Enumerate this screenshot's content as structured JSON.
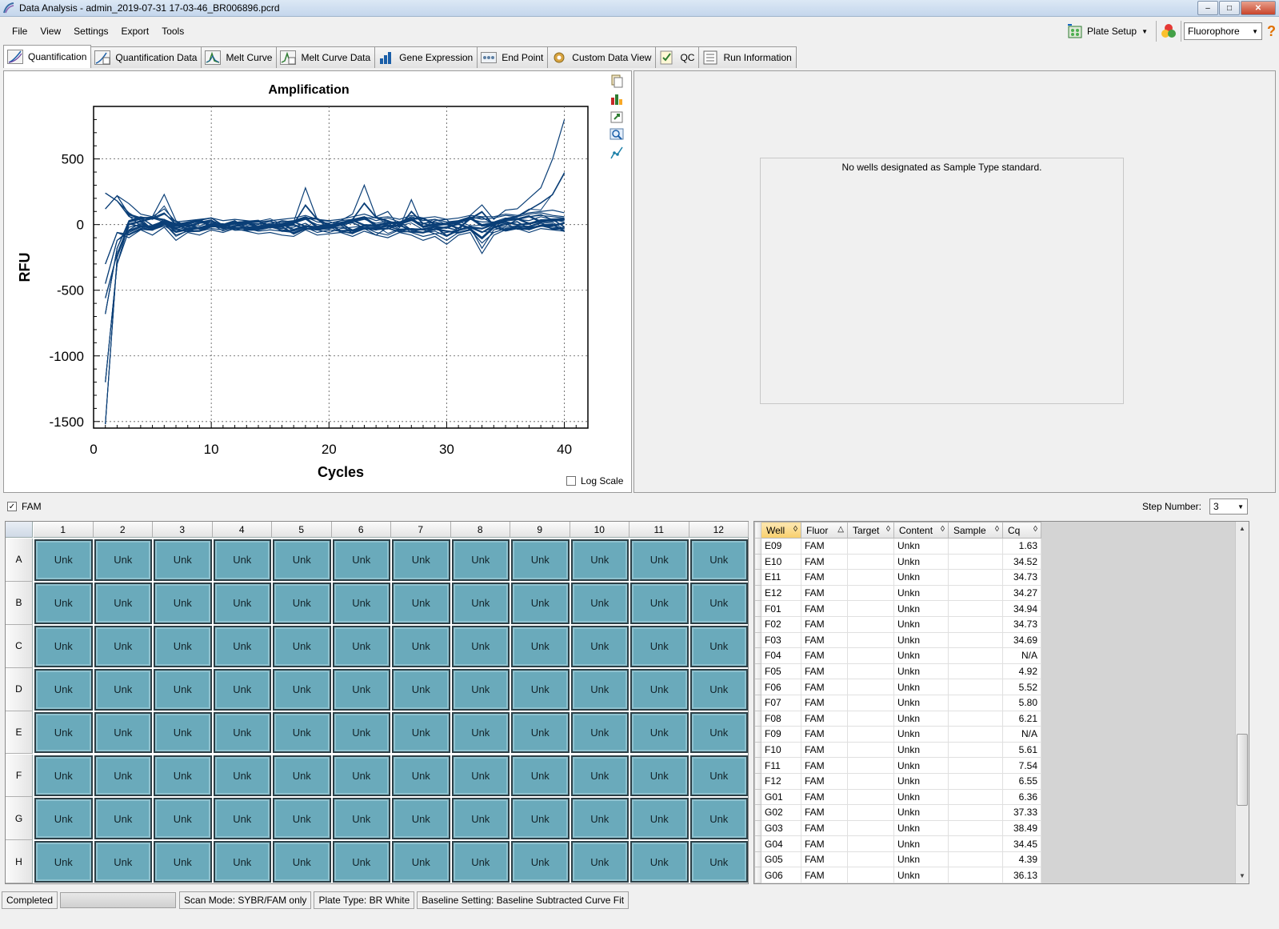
{
  "window": {
    "title": "Data Analysis - admin_2019-07-31 17-03-46_BR006896.pcrd",
    "minimize": "–",
    "maximize": "□",
    "close": "✕"
  },
  "menu": {
    "items": [
      "File",
      "View",
      "Settings",
      "Export",
      "Tools"
    ],
    "plate_setup_label": "Plate Setup",
    "fluorophore_selected": "Fluorophore",
    "help": "?"
  },
  "tabs": [
    {
      "label": "Quantification",
      "icon": "amplification-icon"
    },
    {
      "label": "Quantification Data",
      "icon": "quant-data-icon"
    },
    {
      "label": "Melt Curve",
      "icon": "melt-curve-icon"
    },
    {
      "label": "Melt Curve Data",
      "icon": "melt-data-icon"
    },
    {
      "label": "Gene Expression",
      "icon": "gene-expression-icon"
    },
    {
      "label": "End Point",
      "icon": "end-point-icon"
    },
    {
      "label": "Custom Data View",
      "icon": "gear-icon"
    },
    {
      "label": "QC",
      "icon": "qc-checklist-icon"
    },
    {
      "label": "Run Information",
      "icon": "run-info-icon"
    }
  ],
  "chart_data": {
    "type": "line",
    "title": "Amplification",
    "xlabel": "Cycles",
    "ylabel": "RFU",
    "xlim": [
      0,
      42
    ],
    "ylim": [
      -1550,
      900
    ],
    "xticks": [
      0,
      10,
      20,
      30,
      40
    ],
    "yticks": [
      -1500,
      -1000,
      -500,
      0,
      500
    ],
    "grid": true,
    "log_scale": false,
    "series_color": "#0b3f77",
    "x": [
      1,
      2,
      3,
      4,
      5,
      6,
      7,
      8,
      9,
      10,
      11,
      12,
      13,
      14,
      15,
      16,
      17,
      18,
      19,
      20,
      21,
      22,
      23,
      24,
      25,
      26,
      27,
      28,
      29,
      30,
      31,
      32,
      33,
      34,
      35,
      36,
      37,
      38,
      39,
      40
    ],
    "series": [
      {
        "values": [
          -1520,
          -250,
          20,
          40,
          60,
          230,
          30,
          -20,
          10,
          20,
          -10,
          0,
          20,
          -20,
          0,
          30,
          20,
          280,
          40,
          -10,
          30,
          80,
          300,
          60,
          100,
          -20,
          190,
          -20,
          30,
          40,
          -50,
          70,
          150,
          40,
          110,
          120,
          200,
          280,
          500,
          800
        ]
      },
      {
        "values": [
          -1200,
          -300,
          -40,
          10,
          -30,
          20,
          -40,
          -20,
          -30,
          10,
          -20,
          10,
          -10,
          -40,
          -20,
          -30,
          -20,
          10,
          -40,
          -30,
          -20,
          -50,
          -30,
          -80,
          -20,
          -10,
          -40,
          -60,
          -50,
          -90,
          -40,
          -10,
          -60,
          -20,
          -10,
          40,
          30,
          60,
          40,
          20
        ]
      },
      {
        "values": [
          -680,
          -180,
          30,
          60,
          40,
          80,
          20,
          -10,
          10,
          30,
          0,
          20,
          10,
          -10,
          10,
          20,
          30,
          60,
          20,
          10,
          30,
          40,
          60,
          30,
          50,
          20,
          60,
          30,
          40,
          20,
          30,
          60,
          40,
          50,
          70,
          60,
          80,
          90,
          70,
          60
        ]
      },
      {
        "values": [
          -450,
          -120,
          -60,
          -20,
          -40,
          -10,
          -60,
          -40,
          -50,
          -30,
          -40,
          -20,
          -30,
          -50,
          -40,
          -50,
          -60,
          -20,
          -60,
          -40,
          -50,
          -70,
          -20,
          -60,
          -80,
          -40,
          -60,
          -90,
          -70,
          -120,
          -60,
          -40,
          -140,
          -60,
          -30,
          -20,
          -40,
          -10,
          -20,
          -30
        ]
      },
      {
        "values": [
          240,
          180,
          90,
          30,
          -40,
          10,
          -80,
          -50,
          -20,
          -10,
          -30,
          -10,
          -20,
          -30,
          -20,
          -40,
          -50,
          -10,
          -40,
          -60,
          -30,
          -20,
          -10,
          -40,
          -30,
          -50,
          -30,
          -40,
          -70,
          -60,
          -40,
          -20,
          -180,
          -40,
          -20,
          -10,
          -20,
          -10,
          -30,
          -20
        ]
      },
      {
        "values": [
          120,
          220,
          160,
          80,
          60,
          120,
          20,
          30,
          40,
          50,
          30,
          40,
          30,
          20,
          30,
          40,
          50,
          70,
          40,
          30,
          40,
          60,
          80,
          50,
          60,
          40,
          70,
          50,
          60,
          40,
          50,
          70,
          60,
          60,
          80,
          70,
          90,
          100,
          110,
          90
        ]
      },
      {
        "values": [
          -300,
          -60,
          -100,
          -40,
          -80,
          -20,
          -120,
          -60,
          -80,
          -40,
          -60,
          -30,
          -50,
          -70,
          -60,
          -80,
          -90,
          -40,
          -80,
          -70,
          -60,
          -90,
          -50,
          -80,
          -100,
          -60,
          -80,
          -120,
          -90,
          -150,
          -80,
          -60,
          -220,
          -80,
          -40,
          -30,
          -60,
          -30,
          -40,
          -50
        ]
      },
      {
        "values": [
          -560,
          -220,
          -20,
          0,
          -20,
          40,
          -30,
          0,
          -10,
          20,
          -10,
          10,
          0,
          -20,
          -10,
          0,
          10,
          40,
          0,
          -10,
          10,
          20,
          40,
          10,
          30,
          0,
          30,
          10,
          20,
          0,
          10,
          40,
          20,
          20,
          50,
          40,
          60,
          70,
          60,
          50
        ]
      }
    ]
  },
  "chart": {
    "log_scale_label": "Log Scale",
    "tool_icons": [
      "copy-icon",
      "chart-settings-icon",
      "export-icon",
      "zoom-icon",
      "trace-icon"
    ]
  },
  "standard_curve": {
    "message": "No wells designated as Sample Type standard."
  },
  "fluor_filter": {
    "label": "FAM",
    "checked": true,
    "step_label": "Step Number:",
    "step_value": "3"
  },
  "plate": {
    "columns": [
      "1",
      "2",
      "3",
      "4",
      "5",
      "6",
      "7",
      "8",
      "9",
      "10",
      "11",
      "12"
    ],
    "rows": [
      "A",
      "B",
      "C",
      "D",
      "E",
      "F",
      "G",
      "H"
    ],
    "well_label": "Unk",
    "well_color": "#6aaabb"
  },
  "table": {
    "headers": [
      {
        "label": "Well",
        "sort": "◊"
      },
      {
        "label": "Fluor",
        "sort": "△"
      },
      {
        "label": "Target",
        "sort": "◊"
      },
      {
        "label": "Content",
        "sort": "◊"
      },
      {
        "label": "Sample",
        "sort": "◊"
      },
      {
        "label": "Cq",
        "sort": "◊"
      }
    ],
    "rows": [
      [
        "E09",
        "FAM",
        "",
        "Unkn",
        "",
        "1.63"
      ],
      [
        "E10",
        "FAM",
        "",
        "Unkn",
        "",
        "34.52"
      ],
      [
        "E11",
        "FAM",
        "",
        "Unkn",
        "",
        "34.73"
      ],
      [
        "E12",
        "FAM",
        "",
        "Unkn",
        "",
        "34.27"
      ],
      [
        "F01",
        "FAM",
        "",
        "Unkn",
        "",
        "34.94"
      ],
      [
        "F02",
        "FAM",
        "",
        "Unkn",
        "",
        "34.73"
      ],
      [
        "F03",
        "FAM",
        "",
        "Unkn",
        "",
        "34.69"
      ],
      [
        "F04",
        "FAM",
        "",
        "Unkn",
        "",
        "N/A"
      ],
      [
        "F05",
        "FAM",
        "",
        "Unkn",
        "",
        "4.92"
      ],
      [
        "F06",
        "FAM",
        "",
        "Unkn",
        "",
        "5.52"
      ],
      [
        "F07",
        "FAM",
        "",
        "Unkn",
        "",
        "5.80"
      ],
      [
        "F08",
        "FAM",
        "",
        "Unkn",
        "",
        "6.21"
      ],
      [
        "F09",
        "FAM",
        "",
        "Unkn",
        "",
        "N/A"
      ],
      [
        "F10",
        "FAM",
        "",
        "Unkn",
        "",
        "5.61"
      ],
      [
        "F11",
        "FAM",
        "",
        "Unkn",
        "",
        "7.54"
      ],
      [
        "F12",
        "FAM",
        "",
        "Unkn",
        "",
        "6.55"
      ],
      [
        "G01",
        "FAM",
        "",
        "Unkn",
        "",
        "6.36"
      ],
      [
        "G02",
        "FAM",
        "",
        "Unkn",
        "",
        "37.33"
      ],
      [
        "G03",
        "FAM",
        "",
        "Unkn",
        "",
        "38.49"
      ],
      [
        "G04",
        "FAM",
        "",
        "Unkn",
        "",
        "34.45"
      ],
      [
        "G05",
        "FAM",
        "",
        "Unkn",
        "",
        "4.39"
      ],
      [
        "G06",
        "FAM",
        "",
        "Unkn",
        "",
        "36.13"
      ]
    ]
  },
  "status": {
    "state": "Completed",
    "scan_mode": "Scan Mode: SYBR/FAM only",
    "plate_type": "Plate Type: BR White",
    "baseline": "Baseline Setting: Baseline Subtracted Curve Fit"
  }
}
